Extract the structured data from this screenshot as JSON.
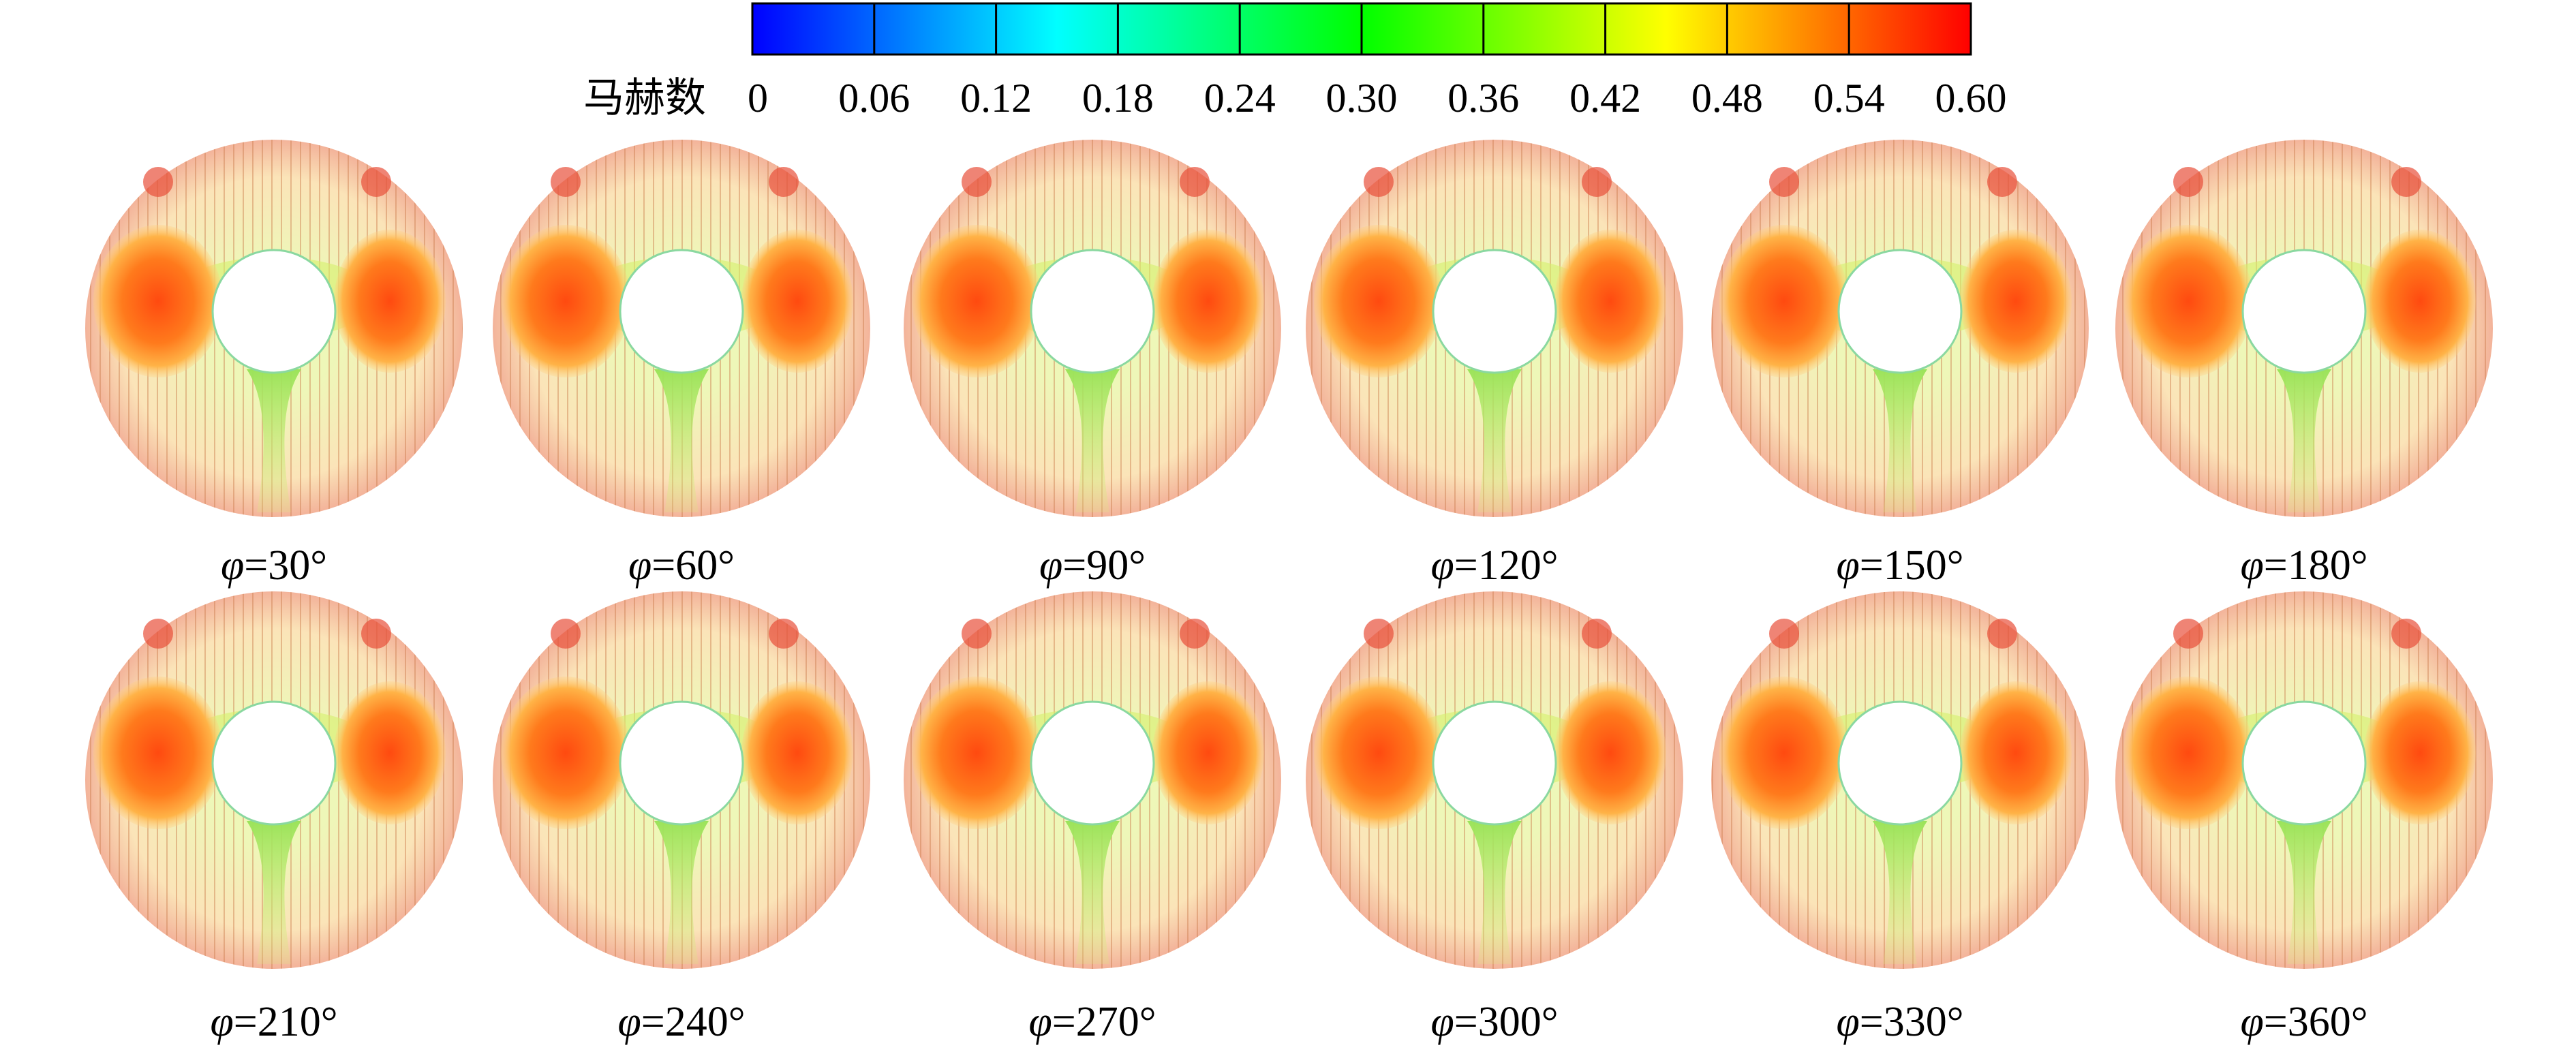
{
  "colorbar": {
    "label": "马赫数",
    "ticks": [
      "0",
      "0.06",
      "0.12",
      "0.18",
      "0.24",
      "0.30",
      "0.36",
      "0.42",
      "0.48",
      "0.54",
      "0.60"
    ]
  },
  "panels": [
    {
      "symbol": "φ",
      "text": "=30°"
    },
    {
      "symbol": "φ",
      "text": "=60°"
    },
    {
      "symbol": "φ",
      "text": "=90°"
    },
    {
      "symbol": "φ",
      "text": "=120°"
    },
    {
      "symbol": "φ",
      "text": "=150°"
    },
    {
      "symbol": "φ",
      "text": "=180°"
    },
    {
      "symbol": "φ",
      "text": "=210°"
    },
    {
      "symbol": "φ",
      "text": "=240°"
    },
    {
      "symbol": "φ",
      "text": "=270°"
    },
    {
      "symbol": "φ",
      "text": "=300°"
    },
    {
      "symbol": "φ",
      "text": "=330°"
    },
    {
      "symbol": "φ",
      "text": "=360°"
    }
  ]
}
